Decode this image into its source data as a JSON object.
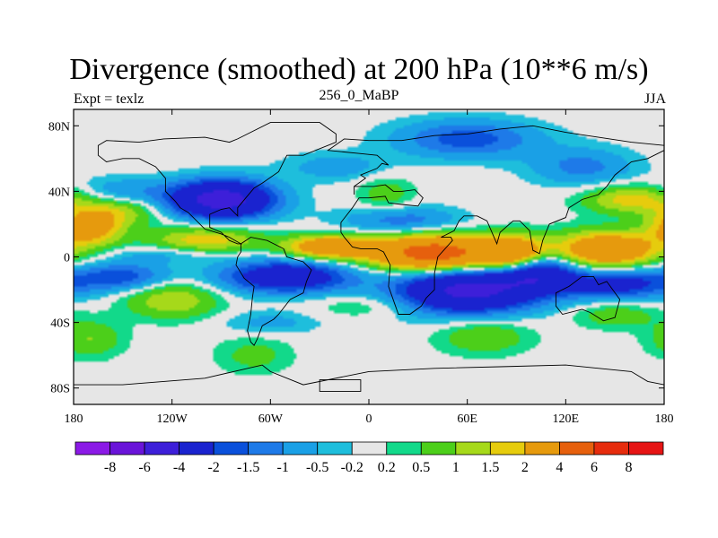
{
  "header": {
    "title": "Divergence (smoothed) at 200 hPa (10**6 m/s)",
    "left": "Expt = texlz",
    "center": "256_0_MaBP",
    "right": "JJA"
  },
  "chart_data": {
    "type": "heatmap",
    "title": "Divergence (smoothed) at 200 hPa (10**6 m/s)",
    "xlabel": "",
    "ylabel": "",
    "xlim": [
      -180,
      180
    ],
    "ylim": [
      -90,
      90
    ],
    "x_ticks": [
      {
        "value": -180,
        "label": "180"
      },
      {
        "value": -120,
        "label": "120W"
      },
      {
        "value": -60,
        "label": "60W"
      },
      {
        "value": 0,
        "label": "0"
      },
      {
        "value": 60,
        "label": "60E"
      },
      {
        "value": 120,
        "label": "120E"
      },
      {
        "value": 180,
        "label": "180"
      }
    ],
    "y_ticks": [
      {
        "value": 80,
        "label": "80N"
      },
      {
        "value": 40,
        "label": "40N"
      },
      {
        "value": 0,
        "label": "0"
      },
      {
        "value": -40,
        "label": "40S"
      },
      {
        "value": -80,
        "label": "80S"
      }
    ],
    "colorbar": {
      "levels": [
        "-8",
        "-6",
        "-4",
        "-2",
        "-1.5",
        "-1",
        "-0.5",
        "-0.2",
        "0.2",
        "0.5",
        "1",
        "1.5",
        "2",
        "4",
        "6",
        "8"
      ],
      "colors": [
        "#8b1ae6",
        "#6a14d9",
        "#3d1fd9",
        "#1a23cf",
        "#0a50db",
        "#1e7ae8",
        "#1aa0e6",
        "#1ebedc",
        "#e6e6e6",
        "#12d98a",
        "#4ccf1a",
        "#a6d91a",
        "#e6cc0d",
        "#e69a0d",
        "#e6600d",
        "#e62c0d",
        "#e61414"
      ]
    },
    "fields": [
      {
        "lon": 40,
        "lat": 2,
        "value": 5.2,
        "sx": 28,
        "sy": 8
      },
      {
        "lon": 90,
        "lat": 0,
        "value": 4.0,
        "sx": 14,
        "sy": 8
      },
      {
        "lon": 145,
        "lat": 4,
        "value": 3.6,
        "sx": 22,
        "sy": 8
      },
      {
        "lon": -25,
        "lat": 6,
        "value": 3.2,
        "sx": 18,
        "sy": 5
      },
      {
        "lon": -170,
        "lat": 18,
        "value": 2.6,
        "sx": 14,
        "sy": 8
      },
      {
        "lon": -100,
        "lat": 10,
        "value": 1.9,
        "sx": 24,
        "sy": 6
      },
      {
        "lon": -120,
        "lat": -26,
        "value": 1.5,
        "sx": 20,
        "sy": 8
      },
      {
        "lon": 160,
        "lat": 35,
        "value": 1.8,
        "sx": 20,
        "sy": 6
      },
      {
        "lon": -150,
        "lat": 28,
        "value": 1.2,
        "sx": 18,
        "sy": 6
      },
      {
        "lon": -170,
        "lat": -50,
        "value": 1.0,
        "sx": 14,
        "sy": 8
      },
      {
        "lon": 70,
        "lat": -48,
        "value": 1.0,
        "sx": 20,
        "sy": 8
      },
      {
        "lon": 150,
        "lat": -35,
        "value": 0.9,
        "sx": 18,
        "sy": 6
      },
      {
        "lon": 10,
        "lat": 38,
        "value": 0.8,
        "sx": 12,
        "sy": 8
      },
      {
        "lon": -70,
        "lat": -60,
        "value": 0.7,
        "sx": 16,
        "sy": 8
      },
      {
        "lon": 0,
        "lat": -30,
        "value": 0.6,
        "sx": 24,
        "sy": 5
      },
      {
        "lon": -90,
        "lat": 35,
        "value": -5.0,
        "sx": 22,
        "sy": 8
      },
      {
        "lon": 60,
        "lat": -20,
        "value": -4.6,
        "sx": 30,
        "sy": 10
      },
      {
        "lon": 100,
        "lat": -8,
        "value": -3.8,
        "sx": 16,
        "sy": 8
      },
      {
        "lon": -50,
        "lat": -12,
        "value": -3.2,
        "sx": 28,
        "sy": 7
      },
      {
        "lon": 150,
        "lat": -16,
        "value": -2.6,
        "sx": 26,
        "sy": 7
      },
      {
        "lon": -150,
        "lat": -12,
        "value": -1.8,
        "sx": 20,
        "sy": 6
      },
      {
        "lon": 60,
        "lat": 72,
        "value": -1.8,
        "sx": 30,
        "sy": 8
      },
      {
        "lon": 20,
        "lat": 22,
        "value": -1.4,
        "sx": 25,
        "sy": 6
      },
      {
        "lon": 130,
        "lat": 55,
        "value": -1.2,
        "sx": 22,
        "sy": 8
      },
      {
        "lon": -150,
        "lat": 40,
        "value": -0.9,
        "sx": 20,
        "sy": 6
      },
      {
        "lon": -20,
        "lat": 55,
        "value": -0.8,
        "sx": 22,
        "sy": 6
      },
      {
        "lon": -120,
        "lat": 2,
        "value": -0.8,
        "sx": 25,
        "sy": 4
      },
      {
        "lon": -60,
        "lat": -40,
        "value": -0.7,
        "sx": 20,
        "sy": 5
      }
    ]
  },
  "map": {
    "continents": [
      {
        "name": "Eurasia-Africa",
        "points": [
          [
            -25,
            65
          ],
          [
            -15,
            72
          ],
          [
            0,
            71
          ],
          [
            20,
            71
          ],
          [
            40,
            74
          ],
          [
            60,
            75
          ],
          [
            80,
            78
          ],
          [
            100,
            80
          ],
          [
            120,
            76
          ],
          [
            140,
            73
          ],
          [
            160,
            70
          ],
          [
            180,
            68
          ],
          [
            180,
            65
          ],
          [
            170,
            60
          ],
          [
            160,
            58
          ],
          [
            150,
            50
          ],
          [
            145,
            43
          ],
          [
            140,
            38
          ],
          [
            130,
            35
          ],
          [
            122,
            30
          ],
          [
            120,
            24
          ],
          [
            110,
            20
          ],
          [
            106,
            10
          ],
          [
            104,
            2
          ],
          [
            100,
            4
          ],
          [
            98,
            16
          ],
          [
            92,
            22
          ],
          [
            88,
            22
          ],
          [
            80,
            15
          ],
          [
            78,
            8
          ],
          [
            75,
            15
          ],
          [
            72,
            22
          ],
          [
            66,
            25
          ],
          [
            58,
            25
          ],
          [
            55,
            22
          ],
          [
            52,
            16
          ],
          [
            44,
            12
          ],
          [
            50,
            12
          ],
          [
            51,
            10
          ],
          [
            42,
            0
          ],
          [
            40,
            -10
          ],
          [
            40,
            -20
          ],
          [
            35,
            -25
          ],
          [
            32,
            -30
          ],
          [
            25,
            -35
          ],
          [
            18,
            -35
          ],
          [
            12,
            -18
          ],
          [
            13,
            -5
          ],
          [
            9,
            3
          ],
          [
            5,
            5
          ],
          [
            -5,
            5
          ],
          [
            -10,
            6
          ],
          [
            -15,
            12
          ],
          [
            -17,
            15
          ],
          [
            -17,
            21
          ],
          [
            -10,
            30
          ],
          [
            -6,
            36
          ],
          [
            0,
            36
          ],
          [
            10,
            37
          ],
          [
            12,
            33
          ],
          [
            20,
            32
          ],
          [
            30,
            31
          ],
          [
            33,
            36
          ],
          [
            28,
            41
          ],
          [
            20,
            40
          ],
          [
            15,
            40
          ],
          [
            10,
            44
          ],
          [
            3,
            43
          ],
          [
            -9,
            43
          ],
          [
            -9,
            38
          ],
          [
            -9,
            43
          ],
          [
            -2,
            48
          ],
          [
            -5,
            50
          ],
          [
            5,
            54
          ],
          [
            8,
            57
          ],
          [
            12,
            56
          ],
          [
            5,
            62
          ],
          [
            -5,
            63
          ],
          [
            -25,
            65
          ]
        ]
      },
      {
        "name": "North America",
        "points": [
          [
            -165,
            68
          ],
          [
            -160,
            71
          ],
          [
            -140,
            70
          ],
          [
            -125,
            72
          ],
          [
            -100,
            73
          ],
          [
            -85,
            70
          ],
          [
            -80,
            72
          ],
          [
            -60,
            82
          ],
          [
            -30,
            82
          ],
          [
            -20,
            75
          ],
          [
            -20,
            70
          ],
          [
            -40,
            62
          ],
          [
            -50,
            62
          ],
          [
            -55,
            52
          ],
          [
            -65,
            45
          ],
          [
            -70,
            42
          ],
          [
            -75,
            36
          ],
          [
            -80,
            30
          ],
          [
            -80,
            25
          ],
          [
            -85,
            30
          ],
          [
            -90,
            29
          ],
          [
            -97,
            26
          ],
          [
            -97,
            18
          ],
          [
            -90,
            15
          ],
          [
            -85,
            10
          ],
          [
            -80,
            8
          ],
          [
            -78,
            8
          ],
          [
            -85,
            12
          ],
          [
            -90,
            14
          ],
          [
            -100,
            17
          ],
          [
            -105,
            22
          ],
          [
            -110,
            27
          ],
          [
            -115,
            30
          ],
          [
            -118,
            34
          ],
          [
            -124,
            40
          ],
          [
            -124,
            48
          ],
          [
            -130,
            55
          ],
          [
            -140,
            60
          ],
          [
            -150,
            60
          ],
          [
            -160,
            58
          ],
          [
            -165,
            62
          ],
          [
            -165,
            68
          ]
        ]
      },
      {
        "name": "South America",
        "points": [
          [
            -78,
            8
          ],
          [
            -72,
            12
          ],
          [
            -62,
            10
          ],
          [
            -52,
            5
          ],
          [
            -50,
            0
          ],
          [
            -40,
            -3
          ],
          [
            -35,
            -8
          ],
          [
            -38,
            -15
          ],
          [
            -40,
            -22
          ],
          [
            -48,
            -26
          ],
          [
            -55,
            -35
          ],
          [
            -58,
            -38
          ],
          [
            -65,
            -42
          ],
          [
            -68,
            -50
          ],
          [
            -70,
            -54
          ],
          [
            -72,
            -52
          ],
          [
            -74,
            -45
          ],
          [
            -72,
            -35
          ],
          [
            -71,
            -25
          ],
          [
            -70,
            -18
          ],
          [
            -76,
            -13
          ],
          [
            -81,
            -5
          ],
          [
            -80,
            0
          ],
          [
            -78,
            3
          ],
          [
            -78,
            8
          ]
        ]
      },
      {
        "name": "Australia",
        "points": [
          [
            114,
            -22
          ],
          [
            122,
            -18
          ],
          [
            130,
            -12
          ],
          [
            137,
            -12
          ],
          [
            140,
            -17
          ],
          [
            145,
            -15
          ],
          [
            153,
            -26
          ],
          [
            150,
            -37
          ],
          [
            143,
            -39
          ],
          [
            135,
            -34
          ],
          [
            130,
            -32
          ],
          [
            118,
            -35
          ],
          [
            114,
            -30
          ],
          [
            114,
            -22
          ]
        ]
      },
      {
        "name": "Antarctica",
        "points": [
          [
            -180,
            -78
          ],
          [
            -150,
            -78
          ],
          [
            -100,
            -74
          ],
          [
            -65,
            -66
          ],
          [
            -60,
            -70
          ],
          [
            -40,
            -78
          ],
          [
            0,
            -70
          ],
          [
            40,
            -68
          ],
          [
            80,
            -67
          ],
          [
            120,
            -66
          ],
          [
            160,
            -70
          ],
          [
            170,
            -76
          ],
          [
            180,
            -78
          ]
        ]
      },
      {
        "name": "Greenland-west",
        "points": [
          [
            -30,
            -82
          ],
          [
            -30,
            -75
          ],
          [
            -5,
            -75
          ],
          [
            -5,
            -82
          ]
        ]
      }
    ]
  }
}
